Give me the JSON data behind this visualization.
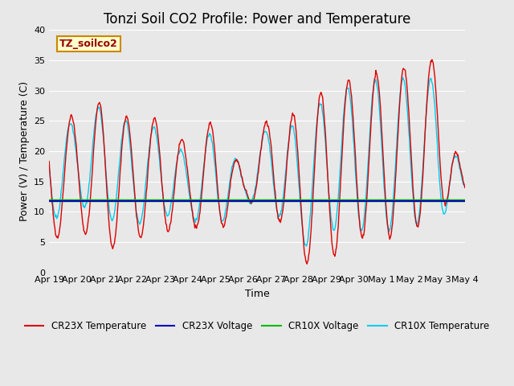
{
  "title": "Tonzi Soil CO2 Profile: Power and Temperature",
  "xlabel": "Time",
  "ylabel": "Power (V) / Temperature (C)",
  "annotation": "TZ_soilco2",
  "ylim": [
    0,
    40
  ],
  "xtick_labels": [
    "Apr 19",
    "Apr 20",
    "Apr 21",
    "Apr 22",
    "Apr 23",
    "Apr 24",
    "Apr 25",
    "Apr 26",
    "Apr 27",
    "Apr 28",
    "Apr 29",
    "Apr 30",
    "May 1",
    "May 2",
    "May 3",
    "May 4"
  ],
  "cr23x_temp_color": "#dd0000",
  "cr23x_volt_color": "#0000bb",
  "cr10x_volt_color": "#00bb00",
  "cr10x_temp_color": "#00ccee",
  "cr23x_volt_value": 11.7,
  "cr10x_volt_value": 11.95,
  "plot_bg_color": "#e8e8e8",
  "fig_bg_color": "#e8e8e8",
  "annotation_bg": "#ffffcc",
  "annotation_border": "#cc8800",
  "annotation_text_color": "#990000",
  "legend_labels": [
    "CR23X Temperature",
    "CR23X Voltage",
    "CR10X Voltage",
    "CR10X Temperature"
  ],
  "title_fontsize": 12,
  "axis_fontsize": 9,
  "tick_fontsize": 8
}
